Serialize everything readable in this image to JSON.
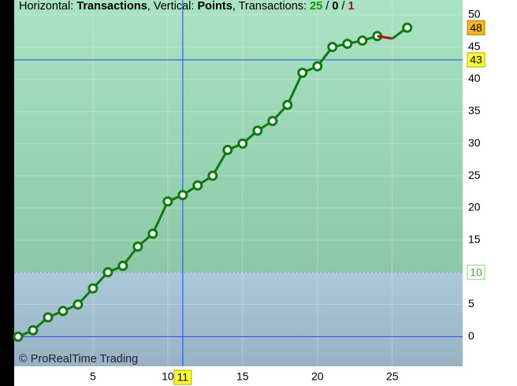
{
  "chart_data": {
    "type": "line",
    "header": {
      "h_label": "Horizontal: ",
      "h_value": "Transactions",
      "v_label": ", Vertical: ",
      "v_value": "Points",
      "t_label": ", Transactions: ",
      "wins": 25,
      "separator": " / ",
      "even": 0,
      "losses": 1
    },
    "watermark": "© ProRealTime Trading",
    "series": [
      {
        "color": "#0f7a0f",
        "marker": true,
        "x": [
          0,
          1,
          2,
          3,
          4,
          5,
          6,
          7,
          8,
          9,
          10,
          11,
          12,
          13,
          14,
          15,
          16,
          17,
          18,
          19,
          20,
          21,
          22,
          23,
          24
        ],
        "values": [
          0,
          1,
          3,
          4,
          5,
          7.5,
          10,
          11,
          14,
          16,
          21,
          22,
          23.5,
          25,
          29,
          30,
          32,
          33.5,
          36,
          41,
          42,
          45,
          45.5,
          46,
          46.7
        ]
      },
      {
        "color": "#b01010",
        "marker": false,
        "x": [
          24,
          25
        ],
        "values": [
          46.7,
          46.3
        ]
      },
      {
        "color": "#0f7a0f",
        "marker": false,
        "x": [
          25,
          26
        ],
        "values": [
          46.3,
          48
        ]
      },
      {
        "color": "#0f7a0f",
        "marker": true,
        "line": false,
        "x": [
          26
        ],
        "values": [
          48
        ]
      }
    ],
    "xlim": [
      -0.26,
      29.7
    ],
    "ylim": [
      -4.6,
      52.3
    ],
    "xticks": [
      5,
      10,
      15,
      20,
      25
    ],
    "yticks": [
      0,
      5,
      10,
      15,
      20,
      25,
      30,
      35,
      40,
      45,
      50
    ],
    "grid": true,
    "threshold": 10,
    "cursor_x": 11,
    "cursor_y": 43,
    "last_value": 48,
    "zero_line": true
  }
}
